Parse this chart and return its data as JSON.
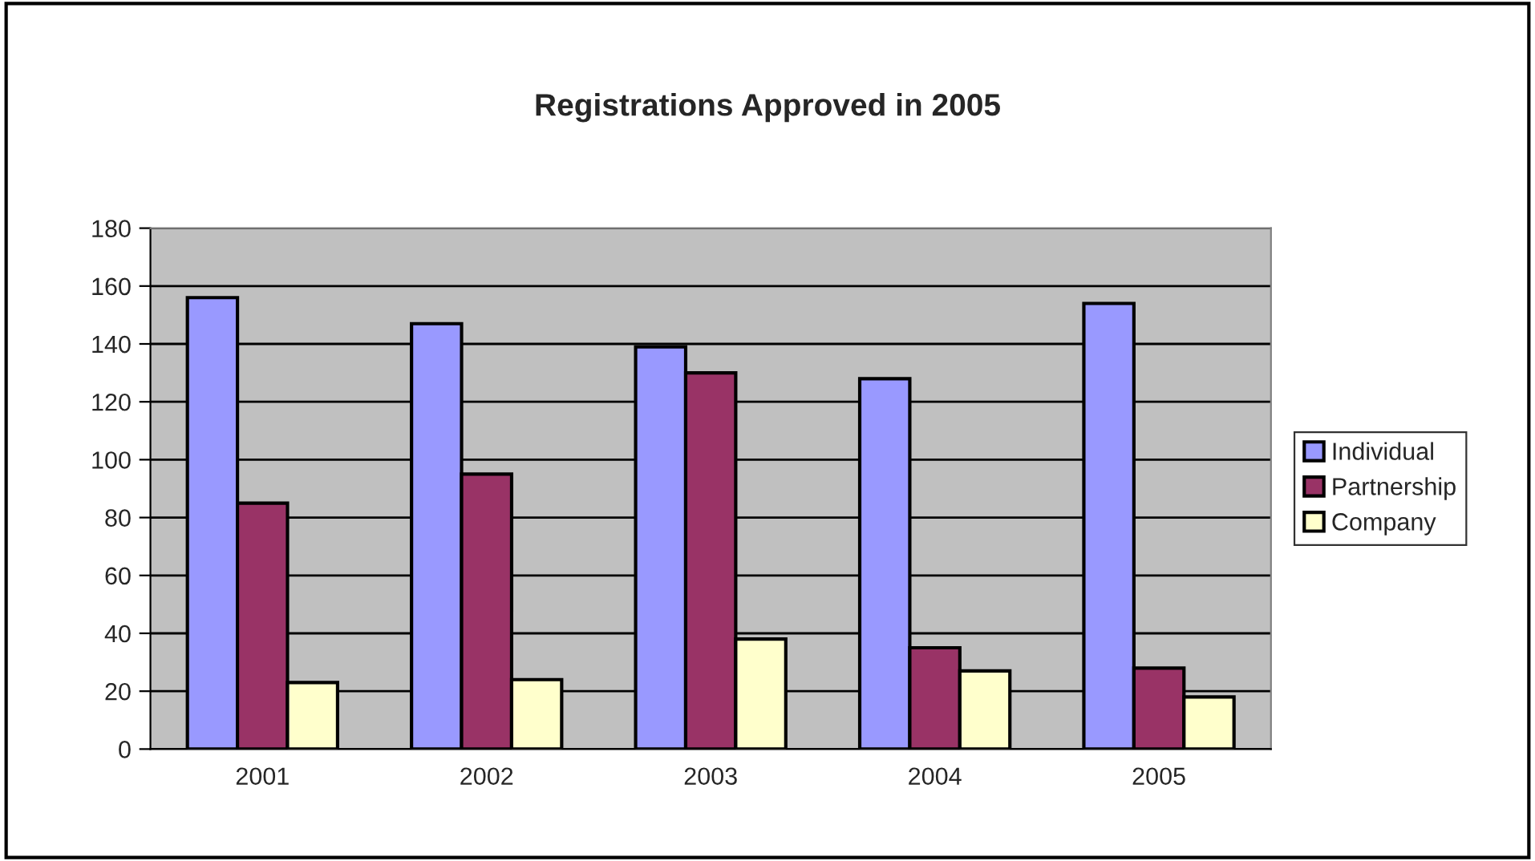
{
  "chart_data": {
    "type": "bar",
    "title": "Registrations Approved in 2005",
    "categories": [
      "2001",
      "2002",
      "2003",
      "2004",
      "2005"
    ],
    "series": [
      {
        "name": "Individual",
        "color": "#9999ff",
        "values": [
          156,
          147,
          139,
          128,
          154
        ]
      },
      {
        "name": "Partnership",
        "color": "#993366",
        "values": [
          85,
          95,
          130,
          35,
          28
        ]
      },
      {
        "name": "Company",
        "color": "#ffffcc",
        "values": [
          23,
          24,
          38,
          27,
          18
        ]
      }
    ],
    "ylim": [
      0,
      180
    ],
    "yticks": [
      0,
      20,
      40,
      60,
      80,
      100,
      120,
      140,
      160,
      180
    ],
    "grid": "y",
    "legend": "right"
  }
}
